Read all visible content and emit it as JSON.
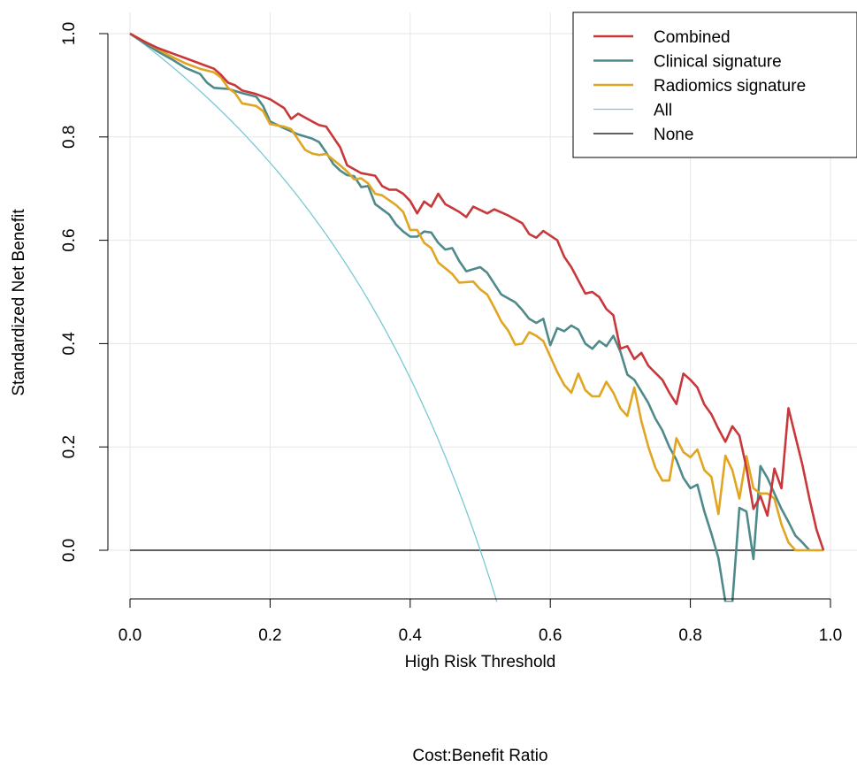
{
  "chart_data": {
    "type": "line",
    "title": "",
    "xlabel": "High Risk Threshold",
    "ylabel": "Standardized Net Benefit",
    "secondary_xlabel": "Cost:Benefit Ratio",
    "xlim": [
      0,
      1
    ],
    "ylim": [
      -0.1,
      1.0
    ],
    "x_ticks": [
      "0.0",
      "0.2",
      "0.4",
      "0.6",
      "0.8",
      "1.0"
    ],
    "y_ticks": [
      "0.0",
      "0.2",
      "0.4",
      "0.6",
      "0.8",
      "1.0"
    ],
    "grid": true,
    "legend_position": "top-right",
    "series": [
      {
        "name": "Combined",
        "color": "#C8373A",
        "points": [
          [
            0,
            1.0
          ],
          [
            0.02,
            0.985
          ],
          [
            0.04,
            0.972
          ],
          [
            0.06,
            0.962
          ],
          [
            0.08,
            0.952
          ],
          [
            0.1,
            0.942
          ],
          [
            0.12,
            0.932
          ],
          [
            0.13,
            0.92
          ],
          [
            0.14,
            0.905
          ],
          [
            0.15,
            0.9
          ],
          [
            0.16,
            0.89
          ],
          [
            0.18,
            0.883
          ],
          [
            0.2,
            0.873
          ],
          [
            0.22,
            0.856
          ],
          [
            0.23,
            0.835
          ],
          [
            0.24,
            0.845
          ],
          [
            0.26,
            0.83
          ],
          [
            0.27,
            0.823
          ],
          [
            0.28,
            0.82
          ],
          [
            0.3,
            0.78
          ],
          [
            0.31,
            0.745
          ],
          [
            0.33,
            0.73
          ],
          [
            0.35,
            0.725
          ],
          [
            0.36,
            0.705
          ],
          [
            0.37,
            0.698
          ],
          [
            0.38,
            0.698
          ],
          [
            0.39,
            0.69
          ],
          [
            0.4,
            0.676
          ],
          [
            0.41,
            0.652
          ],
          [
            0.42,
            0.675
          ],
          [
            0.43,
            0.665
          ],
          [
            0.44,
            0.69
          ],
          [
            0.45,
            0.67
          ],
          [
            0.47,
            0.655
          ],
          [
            0.48,
            0.645
          ],
          [
            0.49,
            0.665
          ],
          [
            0.51,
            0.652
          ],
          [
            0.52,
            0.66
          ],
          [
            0.54,
            0.648
          ],
          [
            0.56,
            0.633
          ],
          [
            0.57,
            0.612
          ],
          [
            0.58,
            0.605
          ],
          [
            0.59,
            0.618
          ],
          [
            0.61,
            0.6
          ],
          [
            0.62,
            0.568
          ],
          [
            0.63,
            0.548
          ],
          [
            0.65,
            0.497
          ],
          [
            0.66,
            0.5
          ],
          [
            0.67,
            0.49
          ],
          [
            0.68,
            0.467
          ],
          [
            0.69,
            0.455
          ],
          [
            0.7,
            0.39
          ],
          [
            0.71,
            0.395
          ],
          [
            0.72,
            0.37
          ],
          [
            0.73,
            0.382
          ],
          [
            0.74,
            0.357
          ],
          [
            0.76,
            0.33
          ],
          [
            0.77,
            0.305
          ],
          [
            0.78,
            0.283
          ],
          [
            0.79,
            0.342
          ],
          [
            0.8,
            0.33
          ],
          [
            0.81,
            0.315
          ],
          [
            0.82,
            0.282
          ],
          [
            0.83,
            0.263
          ],
          [
            0.84,
            0.235
          ],
          [
            0.85,
            0.21
          ],
          [
            0.86,
            0.24
          ],
          [
            0.87,
            0.222
          ],
          [
            0.88,
            0.16
          ],
          [
            0.89,
            0.08
          ],
          [
            0.9,
            0.105
          ],
          [
            0.91,
            0.067
          ],
          [
            0.92,
            0.158
          ],
          [
            0.93,
            0.12
          ],
          [
            0.94,
            0.275
          ],
          [
            0.95,
            0.22
          ],
          [
            0.96,
            0.165
          ],
          [
            0.97,
            0.1
          ],
          [
            0.98,
            0.04
          ],
          [
            0.99,
            0.0
          ]
        ]
      },
      {
        "name": "Clinical signature",
        "color": "#4F8A8B",
        "points": [
          [
            0,
            1.0
          ],
          [
            0.02,
            0.982
          ],
          [
            0.04,
            0.965
          ],
          [
            0.06,
            0.95
          ],
          [
            0.08,
            0.933
          ],
          [
            0.1,
            0.922
          ],
          [
            0.11,
            0.905
          ],
          [
            0.12,
            0.895
          ],
          [
            0.14,
            0.893
          ],
          [
            0.16,
            0.885
          ],
          [
            0.18,
            0.878
          ],
          [
            0.19,
            0.86
          ],
          [
            0.2,
            0.83
          ],
          [
            0.22,
            0.817
          ],
          [
            0.24,
            0.805
          ],
          [
            0.26,
            0.797
          ],
          [
            0.27,
            0.79
          ],
          [
            0.28,
            0.77
          ],
          [
            0.29,
            0.748
          ],
          [
            0.3,
            0.735
          ],
          [
            0.31,
            0.726
          ],
          [
            0.32,
            0.724
          ],
          [
            0.33,
            0.703
          ],
          [
            0.34,
            0.705
          ],
          [
            0.35,
            0.67
          ],
          [
            0.36,
            0.66
          ],
          [
            0.37,
            0.65
          ],
          [
            0.38,
            0.63
          ],
          [
            0.39,
            0.617
          ],
          [
            0.4,
            0.607
          ],
          [
            0.41,
            0.607
          ],
          [
            0.42,
            0.617
          ],
          [
            0.43,
            0.615
          ],
          [
            0.44,
            0.595
          ],
          [
            0.45,
            0.582
          ],
          [
            0.46,
            0.585
          ],
          [
            0.47,
            0.56
          ],
          [
            0.48,
            0.54
          ],
          [
            0.5,
            0.548
          ],
          [
            0.51,
            0.537
          ],
          [
            0.53,
            0.495
          ],
          [
            0.55,
            0.48
          ],
          [
            0.56,
            0.465
          ],
          [
            0.57,
            0.448
          ],
          [
            0.58,
            0.44
          ],
          [
            0.59,
            0.448
          ],
          [
            0.6,
            0.397
          ],
          [
            0.61,
            0.43
          ],
          [
            0.62,
            0.424
          ],
          [
            0.63,
            0.435
          ],
          [
            0.64,
            0.427
          ],
          [
            0.65,
            0.4
          ],
          [
            0.66,
            0.39
          ],
          [
            0.67,
            0.405
          ],
          [
            0.68,
            0.395
          ],
          [
            0.69,
            0.415
          ],
          [
            0.7,
            0.385
          ],
          [
            0.71,
            0.34
          ],
          [
            0.72,
            0.33
          ],
          [
            0.74,
            0.285
          ],
          [
            0.75,
            0.255
          ],
          [
            0.76,
            0.232
          ],
          [
            0.77,
            0.2
          ],
          [
            0.78,
            0.175
          ],
          [
            0.79,
            0.14
          ],
          [
            0.8,
            0.12
          ],
          [
            0.81,
            0.127
          ],
          [
            0.82,
            0.075
          ],
          [
            0.83,
            0.032
          ],
          [
            0.84,
            -0.015
          ],
          [
            0.85,
            -0.1
          ],
          [
            0.86,
            -0.1
          ],
          [
            0.87,
            0.082
          ],
          [
            0.88,
            0.075
          ],
          [
            0.89,
            -0.017
          ],
          [
            0.9,
            0.163
          ],
          [
            0.91,
            0.14
          ],
          [
            0.92,
            0.11
          ],
          [
            0.93,
            0.08
          ],
          [
            0.94,
            0.055
          ],
          [
            0.95,
            0.028
          ],
          [
            0.96,
            0.015
          ],
          [
            0.97,
            0.0
          ]
        ]
      },
      {
        "name": "Radiomics signature",
        "color": "#E0A521",
        "points": [
          [
            0,
            1.0
          ],
          [
            0.02,
            0.985
          ],
          [
            0.04,
            0.97
          ],
          [
            0.06,
            0.955
          ],
          [
            0.08,
            0.942
          ],
          [
            0.1,
            0.932
          ],
          [
            0.12,
            0.925
          ],
          [
            0.13,
            0.915
          ],
          [
            0.14,
            0.895
          ],
          [
            0.15,
            0.885
          ],
          [
            0.16,
            0.865
          ],
          [
            0.18,
            0.86
          ],
          [
            0.19,
            0.85
          ],
          [
            0.2,
            0.825
          ],
          [
            0.22,
            0.82
          ],
          [
            0.23,
            0.815
          ],
          [
            0.24,
            0.795
          ],
          [
            0.25,
            0.775
          ],
          [
            0.26,
            0.768
          ],
          [
            0.27,
            0.765
          ],
          [
            0.28,
            0.767
          ],
          [
            0.3,
            0.745
          ],
          [
            0.31,
            0.733
          ],
          [
            0.32,
            0.718
          ],
          [
            0.33,
            0.72
          ],
          [
            0.34,
            0.71
          ],
          [
            0.35,
            0.69
          ],
          [
            0.36,
            0.687
          ],
          [
            0.38,
            0.668
          ],
          [
            0.39,
            0.655
          ],
          [
            0.4,
            0.62
          ],
          [
            0.41,
            0.62
          ],
          [
            0.42,
            0.595
          ],
          [
            0.43,
            0.585
          ],
          [
            0.44,
            0.557
          ],
          [
            0.46,
            0.535
          ],
          [
            0.47,
            0.518
          ],
          [
            0.49,
            0.52
          ],
          [
            0.5,
            0.505
          ],
          [
            0.51,
            0.495
          ],
          [
            0.52,
            0.47
          ],
          [
            0.53,
            0.443
          ],
          [
            0.54,
            0.425
          ],
          [
            0.55,
            0.398
          ],
          [
            0.56,
            0.4
          ],
          [
            0.57,
            0.422
          ],
          [
            0.58,
            0.415
          ],
          [
            0.59,
            0.405
          ],
          [
            0.6,
            0.375
          ],
          [
            0.61,
            0.345
          ],
          [
            0.62,
            0.32
          ],
          [
            0.63,
            0.305
          ],
          [
            0.64,
            0.342
          ],
          [
            0.65,
            0.31
          ],
          [
            0.66,
            0.298
          ],
          [
            0.67,
            0.298
          ],
          [
            0.68,
            0.326
          ],
          [
            0.69,
            0.305
          ],
          [
            0.7,
            0.275
          ],
          [
            0.71,
            0.26
          ],
          [
            0.72,
            0.315
          ],
          [
            0.73,
            0.25
          ],
          [
            0.74,
            0.2
          ],
          [
            0.75,
            0.16
          ],
          [
            0.76,
            0.135
          ],
          [
            0.77,
            0.135
          ],
          [
            0.78,
            0.217
          ],
          [
            0.79,
            0.19
          ],
          [
            0.8,
            0.18
          ],
          [
            0.81,
            0.195
          ],
          [
            0.82,
            0.155
          ],
          [
            0.83,
            0.142
          ],
          [
            0.84,
            0.07
          ],
          [
            0.85,
            0.183
          ],
          [
            0.86,
            0.155
          ],
          [
            0.87,
            0.1
          ],
          [
            0.88,
            0.182
          ],
          [
            0.89,
            0.12
          ],
          [
            0.9,
            0.11
          ],
          [
            0.91,
            0.11
          ],
          [
            0.92,
            0.1
          ],
          [
            0.93,
            0.05
          ],
          [
            0.94,
            0.015
          ],
          [
            0.95,
            0.0
          ],
          [
            0.99,
            0.0
          ]
        ]
      },
      {
        "name": "All",
        "color": "#79C9D4",
        "function": "treat_all",
        "prevalence": 0.5,
        "x_range": [
          0,
          0.53
        ]
      },
      {
        "name": "None",
        "color": "#000000",
        "points": [
          [
            0,
            0
          ],
          [
            0.99,
            0
          ]
        ]
      }
    ]
  }
}
